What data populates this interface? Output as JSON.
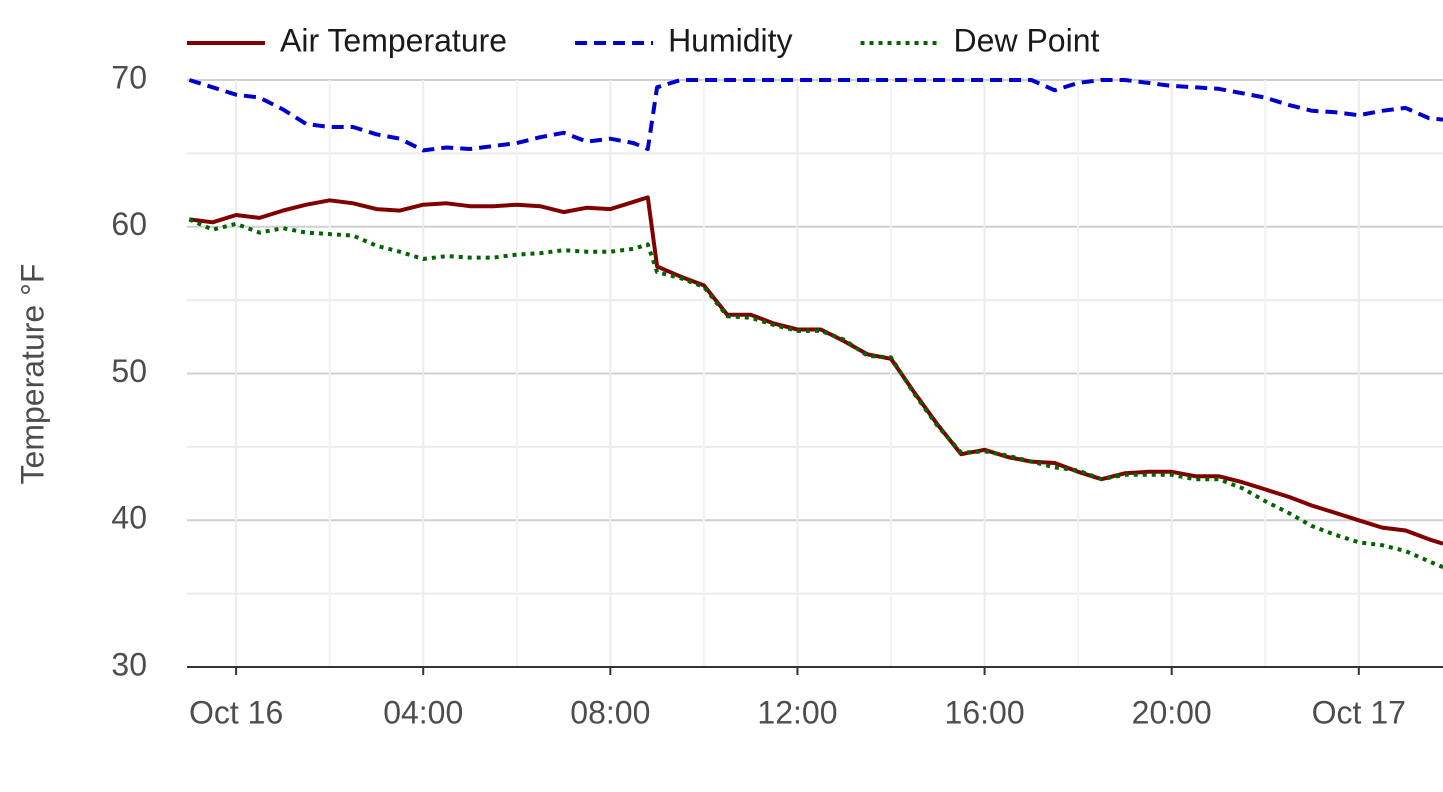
{
  "chart_data": {
    "type": "line",
    "y_label": "Temperature °F",
    "x": [
      -1,
      -0.5,
      0,
      0.5,
      1,
      1.5,
      2,
      2.5,
      3,
      3.5,
      4,
      4.5,
      5,
      5.5,
      6,
      6.5,
      7,
      7.5,
      8,
      8.5,
      8.8,
      9,
      9.5,
      10,
      10.5,
      11,
      11.5,
      12,
      12.5,
      13,
      13.5,
      14,
      14.5,
      15,
      15.5,
      16,
      16.5,
      17,
      17.5,
      18,
      18.5,
      19,
      19.5,
      20,
      20.5,
      21,
      21.5,
      22,
      22.5,
      23,
      23.5,
      24,
      24.5,
      25,
      25.5,
      25.8
    ],
    "series": [
      {
        "name": "Air Temperature",
        "color": "#800000",
        "dash": "solid",
        "values": [
          60.5,
          60.3,
          60.8,
          60.6,
          61.1,
          61.5,
          61.8,
          61.6,
          61.2,
          61.1,
          61.5,
          61.6,
          61.4,
          61.4,
          61.5,
          61.4,
          61.0,
          61.3,
          61.2,
          61.7,
          62.0,
          57.3,
          56.6,
          56.0,
          54.0,
          54.0,
          53.4,
          53.0,
          53.0,
          52.2,
          51.3,
          51.0,
          48.7,
          46.5,
          44.5,
          44.8,
          44.3,
          44.0,
          43.9,
          43.3,
          42.8,
          43.2,
          43.3,
          43.3,
          43.0,
          43.0,
          42.6,
          42.1,
          41.6,
          41.0,
          40.5,
          40.0,
          39.5,
          39.3,
          38.7,
          38.4
        ]
      },
      {
        "name": "Humidity",
        "color": "#0000cd",
        "dash": "dashed",
        "values": [
          70,
          69.5,
          69.0,
          68.8,
          68.0,
          67.0,
          66.8,
          66.8,
          66.3,
          66.0,
          65.2,
          65.4,
          65.3,
          65.5,
          65.7,
          66.1,
          66.4,
          65.8,
          66.0,
          65.7,
          65.3,
          69.5,
          70,
          70,
          70,
          70,
          70,
          70,
          70,
          70,
          70,
          70,
          70,
          70,
          70,
          70,
          70,
          70,
          69.3,
          69.8,
          70,
          70,
          69.8,
          69.6,
          69.5,
          69.4,
          69.1,
          68.8,
          68.3,
          67.9,
          67.8,
          67.6,
          67.9,
          68.1,
          67.4,
          67.3
        ]
      },
      {
        "name": "Dew Point",
        "color": "#006400",
        "dash": "dotted",
        "values": [
          60.5,
          59.8,
          60.2,
          59.6,
          59.9,
          59.6,
          59.5,
          59.4,
          58.7,
          58.3,
          57.8,
          58.0,
          57.9,
          57.9,
          58.1,
          58.2,
          58.4,
          58.3,
          58.3,
          58.5,
          58.8,
          56.9,
          56.5,
          55.9,
          53.9,
          53.8,
          53.3,
          52.9,
          52.9,
          52.3,
          51.2,
          51.1,
          48.6,
          46.4,
          44.6,
          44.7,
          44.4,
          44.0,
          43.6,
          43.4,
          42.8,
          43.1,
          43.1,
          43.1,
          42.8,
          42.8,
          42.2,
          41.3,
          40.5,
          39.6,
          39.0,
          38.5,
          38.3,
          37.9,
          37.2,
          36.8
        ]
      }
    ],
    "xlim": [
      -1.05,
      25.8
    ],
    "xticks": [
      {
        "value": 0,
        "label": "Oct 16"
      },
      {
        "value": 4,
        "label": "04:00"
      },
      {
        "value": 8,
        "label": "08:00"
      },
      {
        "value": 12,
        "label": "12:00"
      },
      {
        "value": 16,
        "label": "16:00"
      },
      {
        "value": 20,
        "label": "20:00"
      },
      {
        "value": 24,
        "label": "Oct 17"
      }
    ],
    "ylim": [
      30,
      70
    ],
    "yticks": [
      30,
      40,
      50,
      60,
      70
    ],
    "grid": true,
    "legend": "top"
  }
}
